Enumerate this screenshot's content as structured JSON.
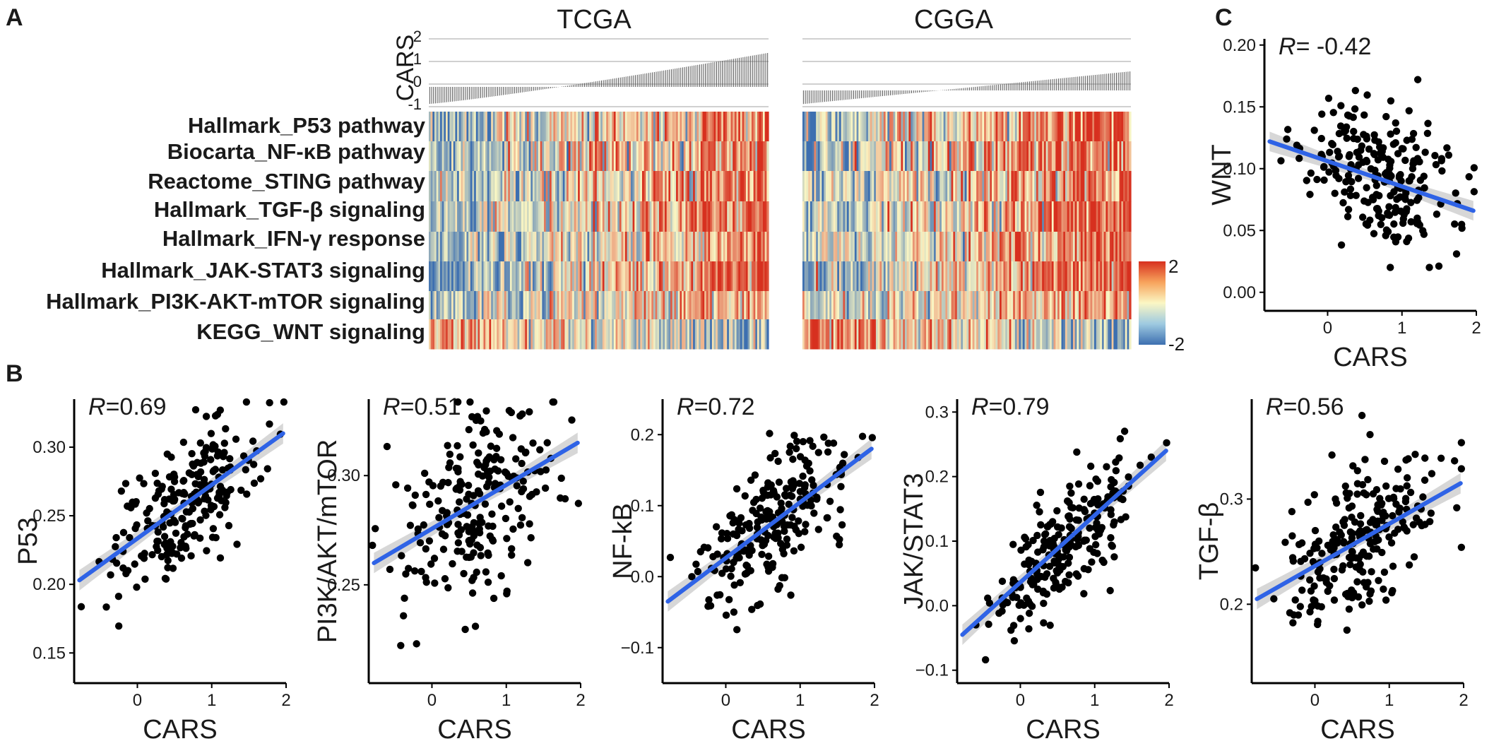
{
  "panels": {
    "a": "A",
    "b": "B",
    "c": "C"
  },
  "heatmap": {
    "cohorts": [
      "TCGA",
      "CGGA"
    ],
    "bar_ylabel": "CARS",
    "bar_ticks": [
      2,
      1,
      0,
      -1
    ],
    "rows": [
      "Hallmark_P53 pathway",
      "Biocarta_NF-κB pathway",
      "Reactome_STING pathway",
      "Hallmark_TGF-β signaling",
      "Hallmark_IFN-γ response",
      "Hallmark_JAK-STAT3 signaling",
      "Hallmark_PI3K-AKT-mTOR signaling",
      "KEGG_WNT signaling"
    ],
    "legend_max": "2",
    "legend_min": "-2",
    "colors": {
      "low": "#3d6fb0",
      "mid": "#fbf7c4",
      "high": "#d7301f"
    }
  },
  "chart_data": [
    {
      "id": "b1",
      "type": "scatter",
      "xlabel": "CARS",
      "ylabel": "P53",
      "r_symbol": "R",
      "r_text": "=0.69",
      "r": 0.69,
      "xlim": [
        -0.85,
        2.0
      ],
      "ylim": [
        0.128,
        0.335
      ],
      "xticks": [
        0,
        1,
        2
      ],
      "yticks": [
        0.15,
        0.2,
        0.25,
        0.3
      ],
      "ytick_labels": [
        "0.15",
        "0.20",
        "0.25",
        "0.30"
      ],
      "fit": {
        "x": [
          -0.78,
          1.96
        ],
        "y": [
          0.203,
          0.31
        ]
      },
      "ymean": 0.258,
      "ysd": 0.032
    },
    {
      "id": "b2",
      "type": "scatter",
      "xlabel": "CARS",
      "ylabel": "PI3K/AKT/mTOR",
      "r_symbol": "R",
      "r_text": "=0.51",
      "r": 0.51,
      "xlim": [
        -0.85,
        2.0
      ],
      "ylim": [
        0.205,
        0.335
      ],
      "xticks": [
        0,
        1,
        2
      ],
      "yticks": [
        0.25,
        0.3
      ],
      "ytick_labels": [
        "0.25",
        "0.30"
      ],
      "fit": {
        "x": [
          -0.78,
          1.96
        ],
        "y": [
          0.26,
          0.315
        ]
      },
      "ymean": 0.287,
      "ysd": 0.024
    },
    {
      "id": "b3",
      "type": "scatter",
      "xlabel": "CARS",
      "ylabel": "NF-kB",
      "r_symbol": "R",
      "r_text": "=0.72",
      "r": 0.72,
      "xlim": [
        -0.85,
        2.0
      ],
      "ylim": [
        -0.15,
        0.25
      ],
      "xticks": [
        0,
        1,
        2
      ],
      "yticks": [
        -0.1,
        0.0,
        0.1,
        0.2
      ],
      "ytick_labels": [
        "−0.1",
        "0.0",
        "0.1",
        "0.2"
      ],
      "fit": {
        "x": [
          -0.78,
          1.96
        ],
        "y": [
          -0.035,
          0.18
        ]
      },
      "ymean": 0.082,
      "ysd": 0.068
    },
    {
      "id": "b4",
      "type": "scatter",
      "xlabel": "CARS",
      "ylabel": "JAK/STAT3",
      "r_symbol": "R",
      "r_text": "=0.79",
      "r": 0.79,
      "xlim": [
        -0.85,
        2.0
      ],
      "ylim": [
        -0.12,
        0.32
      ],
      "xticks": [
        0,
        1,
        2
      ],
      "yticks": [
        -0.1,
        0.0,
        0.1,
        0.2,
        0.3
      ],
      "ytick_labels": [
        "−0.1",
        "0.0",
        "0.1",
        "0.2",
        "0.3"
      ],
      "fit": {
        "x": [
          -0.78,
          1.96
        ],
        "y": [
          -0.045,
          0.24
        ]
      },
      "ymean": 0.11,
      "ysd": 0.074
    },
    {
      "id": "b5",
      "type": "scatter",
      "xlabel": "CARS",
      "ylabel": "TGF-β",
      "r_symbol": "R",
      "r_text": "=0.56",
      "r": 0.56,
      "xlim": [
        -0.85,
        2.0
      ],
      "ylim": [
        0.125,
        0.395
      ],
      "xticks": [
        0,
        1,
        2
      ],
      "yticks": [
        0.2,
        0.3
      ],
      "ytick_labels": [
        "0.2",
        "0.3"
      ],
      "fit": {
        "x": [
          -0.78,
          1.96
        ],
        "y": [
          0.205,
          0.315
        ]
      },
      "ymean": 0.265,
      "ysd": 0.04
    },
    {
      "id": "c",
      "type": "scatter",
      "xlabel": "CARS",
      "ylabel": "WNT",
      "r_symbol": "R",
      "r_text": "= -0.42",
      "r": -0.42,
      "xlim": [
        -0.85,
        2.0
      ],
      "ylim": [
        -0.015,
        0.205
      ],
      "xticks": [
        0,
        1,
        2
      ],
      "yticks": [
        0.0,
        0.05,
        0.1,
        0.15,
        0.2
      ],
      "ytick_labels": [
        "0.00",
        "0.05",
        "0.10",
        "0.15",
        "0.20"
      ],
      "fit": {
        "x": [
          -0.78,
          1.96
        ],
        "y": [
          0.122,
          0.066
        ]
      },
      "ymean": 0.095,
      "ysd": 0.03
    }
  ]
}
